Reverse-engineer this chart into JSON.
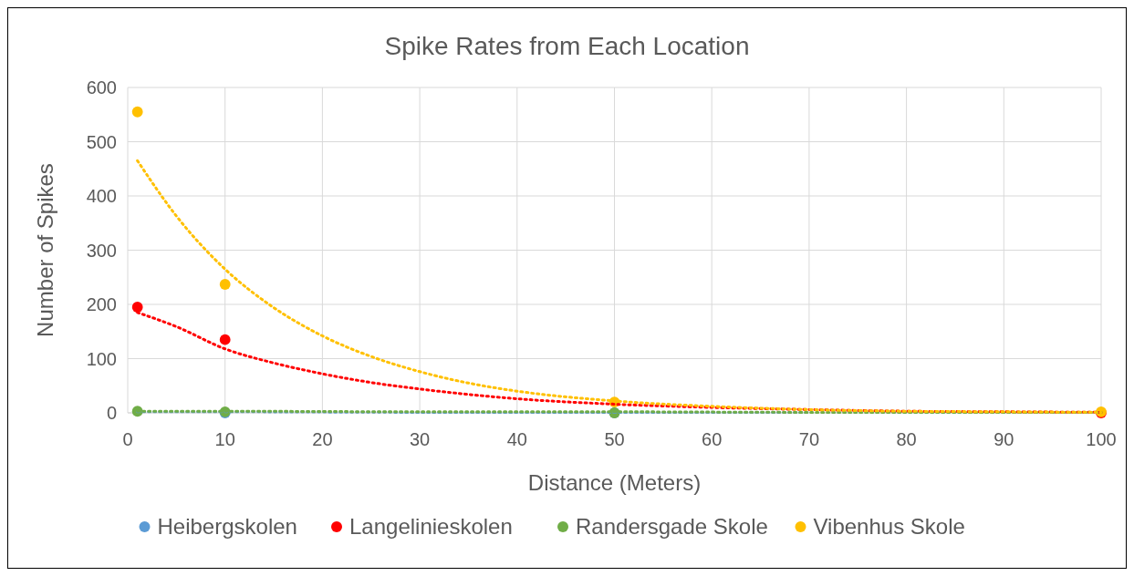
{
  "chart_data": {
    "type": "scatter",
    "title": "Spike Rates from Each Location",
    "xlabel": "Distance (Meters)",
    "ylabel": "Number of Spikes",
    "xlim": [
      0,
      100
    ],
    "xticks": [
      0,
      10,
      20,
      30,
      40,
      50,
      60,
      70,
      80,
      90,
      100
    ],
    "ylim": [
      0,
      600
    ],
    "yticks": [
      0,
      100,
      200,
      300,
      400,
      500,
      600
    ],
    "grid": true,
    "legend": "bottom",
    "marker": "circle",
    "series": [
      {
        "name": "Heibergskolen",
        "color": "#5b9bd5",
        "x": [
          10,
          50
        ],
        "values": [
          0,
          0
        ]
      },
      {
        "name": "Langelinieskolen",
        "color": "#ff0000",
        "x": [
          1,
          10,
          100
        ],
        "values": [
          195,
          135,
          0
        ]
      },
      {
        "name": "Randersgade Skole",
        "color": "#70ad47",
        "x": [
          1,
          10,
          50
        ],
        "values": [
          3,
          2,
          0
        ]
      },
      {
        "name": "Vibenhus Skole",
        "color": "#ffc000",
        "x": [
          1,
          10,
          50,
          100
        ],
        "values": [
          555,
          237,
          20,
          2
        ]
      },
      {
        "type": "line",
        "color": "#5b9bd5",
        "line_style": "dotted",
        "marker": "none",
        "x": [
          1,
          10,
          30,
          50,
          70
        ],
        "values": [
          2,
          2,
          1,
          1,
          1
        ]
      },
      {
        "type": "line",
        "color": "#ff0000",
        "line_style": "dotted",
        "marker": "none",
        "x": [
          1,
          5,
          10,
          15,
          20,
          25,
          30,
          40,
          50,
          60,
          70,
          80,
          90,
          100
        ],
        "values": [
          185,
          159,
          118,
          92,
          72,
          56,
          44,
          26,
          16,
          10,
          6,
          3,
          2,
          1
        ]
      },
      {
        "type": "line",
        "color": "#70ad47",
        "line_style": "dotted",
        "marker": "none",
        "x": [
          1,
          10,
          30,
          50,
          70,
          100
        ],
        "values": [
          3,
          3,
          2,
          2,
          1,
          1
        ]
      },
      {
        "type": "line",
        "color": "#ffc000",
        "line_style": "dotted",
        "marker": "none",
        "x": [
          1,
          5,
          10,
          15,
          20,
          25,
          30,
          35,
          40,
          50,
          60,
          70,
          80,
          90,
          100
        ],
        "values": [
          465,
          363,
          265,
          194,
          142,
          104,
          76,
          55,
          40,
          22,
          12,
          6,
          3,
          2,
          1
        ]
      }
    ]
  }
}
